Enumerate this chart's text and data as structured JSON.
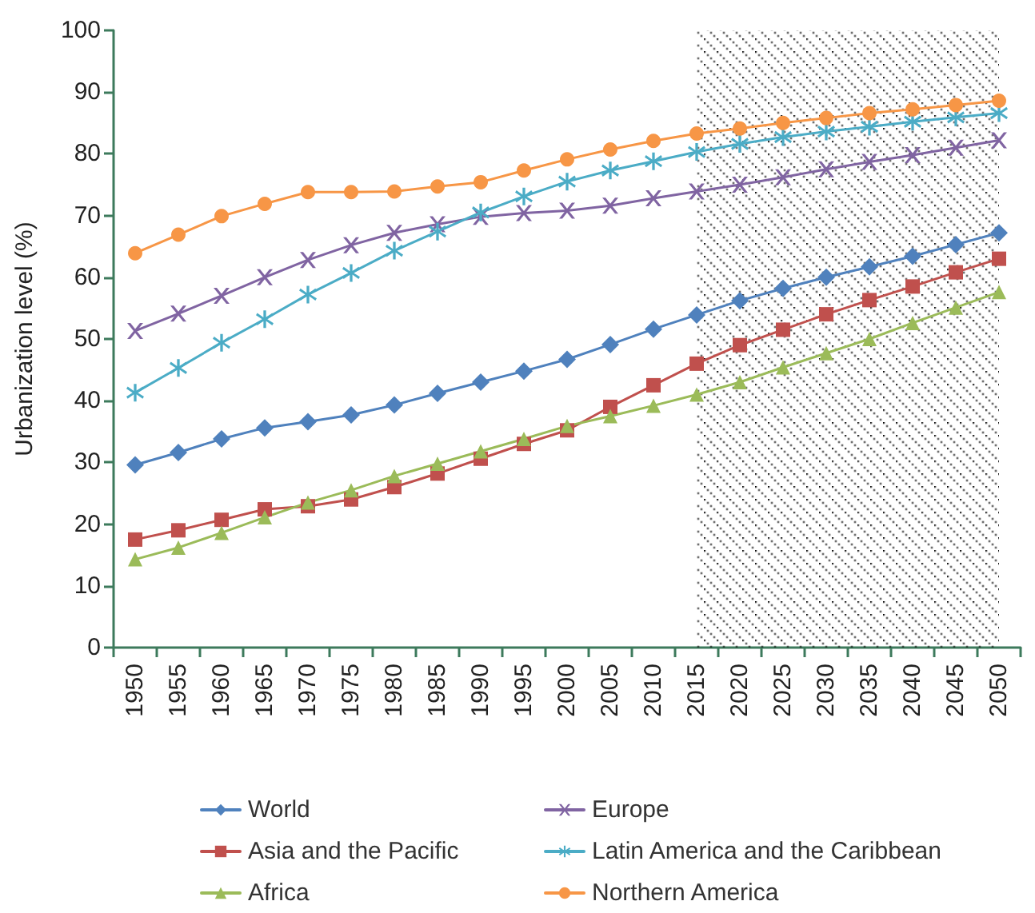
{
  "chart_data": {
    "type": "line",
    "ylabel": "Urbanization level (%)",
    "categories": [
      "1950",
      "1955",
      "1960",
      "1965",
      "1970",
      "1975",
      "1980",
      "1985",
      "1990",
      "1995",
      "2000",
      "2005",
      "2010",
      "2015",
      "2020",
      "2025",
      "2030",
      "2035",
      "2040",
      "2045",
      "2050"
    ],
    "ylim": [
      0,
      100
    ],
    "yticks": [
      0,
      10,
      20,
      30,
      40,
      50,
      60,
      70,
      80,
      90,
      100
    ],
    "grid": false,
    "legend": "bottom",
    "bands": [
      {
        "axis": "x",
        "from": "2015",
        "to": "2050",
        "color": "#000000"
      }
    ],
    "series": [
      {
        "name": "World",
        "color": "#4f81bd",
        "marker": "diamond",
        "values": [
          29.6,
          31.6,
          33.8,
          35.6,
          36.6,
          37.7,
          39.3,
          41.2,
          43.0,
          44.8,
          46.7,
          49.1,
          51.6,
          53.9,
          56.2,
          58.2,
          60.0,
          61.7,
          63.4,
          65.3,
          67.2
        ]
      },
      {
        "name": "Asia and the Pacific",
        "color": "#c0504d",
        "marker": "square",
        "values": [
          17.5,
          19.0,
          20.7,
          22.4,
          22.9,
          24.0,
          26.0,
          28.2,
          30.6,
          33.0,
          35.2,
          39.0,
          42.5,
          46.0,
          49.0,
          51.5,
          54.0,
          56.3,
          58.5,
          60.8,
          63.0
        ]
      },
      {
        "name": "Africa",
        "color": "#9bbb59",
        "marker": "triangle",
        "values": [
          14.3,
          16.2,
          18.6,
          21.1,
          23.5,
          25.5,
          27.8,
          29.8,
          31.8,
          33.8,
          35.9,
          37.5,
          39.2,
          41.0,
          43.0,
          45.4,
          47.7,
          50.0,
          52.6,
          55.1,
          57.6
        ]
      },
      {
        "name": "Europe",
        "color": "#8064a2",
        "marker": "cross",
        "values": [
          51.3,
          54.1,
          57.0,
          60.0,
          62.8,
          65.2,
          67.2,
          68.6,
          69.8,
          70.4,
          70.8,
          71.6,
          72.8,
          73.9,
          75.0,
          76.2,
          77.5,
          78.7,
          79.8,
          81.0,
          82.2
        ]
      },
      {
        "name": "Latin America and the Caribbean",
        "color": "#4bacc6",
        "marker": "star",
        "values": [
          41.3,
          45.3,
          49.4,
          53.2,
          57.2,
          60.7,
          64.3,
          67.4,
          70.5,
          73.1,
          75.5,
          77.3,
          78.8,
          80.3,
          81.6,
          82.7,
          83.6,
          84.4,
          85.2,
          85.9,
          86.6
        ]
      },
      {
        "name": "Northern America",
        "color": "#f79646",
        "marker": "circle",
        "values": [
          63.9,
          66.9,
          69.9,
          71.9,
          73.8,
          73.8,
          73.9,
          74.7,
          75.4,
          77.3,
          79.1,
          80.7,
          82.1,
          83.3,
          84.1,
          85.0,
          85.8,
          86.6,
          87.2,
          87.9,
          88.6
        ]
      }
    ]
  }
}
